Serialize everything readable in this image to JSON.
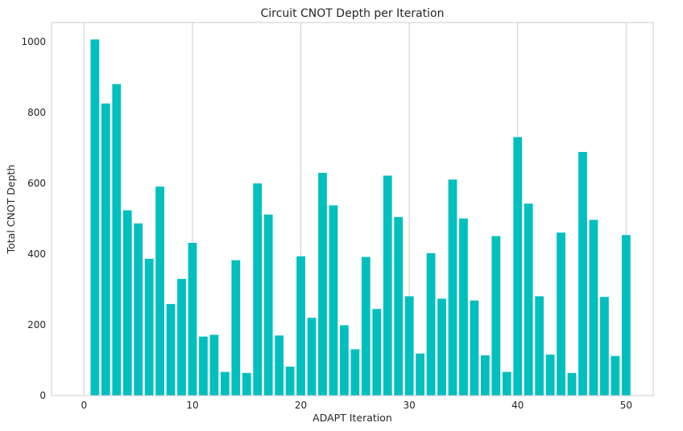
{
  "chart_data": {
    "type": "bar",
    "title": "Circuit CNOT Depth per Iteration",
    "xlabel": "ADAPT Iteration",
    "ylabel": "Total CNOT Depth",
    "x": [
      1,
      2,
      3,
      4,
      5,
      6,
      7,
      8,
      9,
      10,
      11,
      12,
      13,
      14,
      15,
      16,
      17,
      18,
      19,
      20,
      21,
      22,
      23,
      24,
      25,
      26,
      27,
      28,
      29,
      30,
      31,
      32,
      33,
      34,
      35,
      36,
      37,
      38,
      39,
      40,
      41,
      42,
      43,
      44,
      45,
      46,
      47,
      48,
      49,
      50
    ],
    "values": [
      1007,
      826,
      881,
      524,
      487,
      387,
      591,
      259,
      330,
      432,
      167,
      172,
      67,
      383,
      64,
      600,
      512,
      170,
      82,
      394,
      220,
      630,
      538,
      199,
      131,
      392,
      245,
      622,
      505,
      281,
      119,
      403,
      274,
      611,
      501,
      269,
      114,
      451,
      67,
      731,
      543,
      281,
      116,
      461,
      64,
      689,
      497,
      279,
      112,
      454
    ],
    "xlim": [
      -3,
      52.5
    ],
    "ylim": [
      0,
      1055
    ],
    "xticks": [
      0,
      10,
      20,
      30,
      40,
      50
    ],
    "xtick_labels": [
      "0",
      "10",
      "20",
      "30",
      "40",
      "50"
    ],
    "yticks": [
      0,
      200,
      400,
      600,
      800,
      1000
    ],
    "ytick_labels": [
      "0",
      "200",
      "400",
      "600",
      "800",
      "1000"
    ],
    "bar_color": "#00BFBF",
    "grid": "x-axis vertical lines only",
    "legend": "none"
  }
}
